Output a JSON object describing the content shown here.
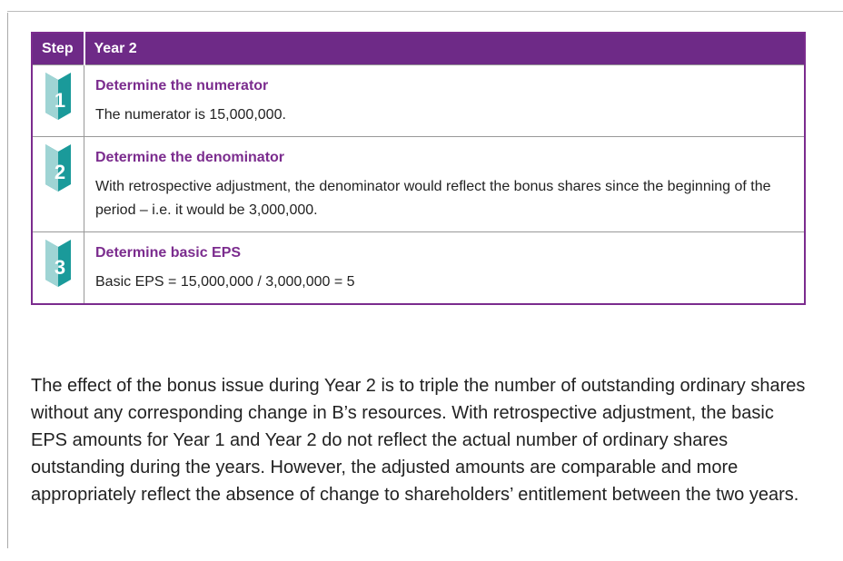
{
  "table": {
    "header": [
      "Step",
      "Year 2"
    ],
    "rows": [
      {
        "step": "1",
        "title": "Determine the numerator",
        "text": "The numerator is 15,000,000."
      },
      {
        "step": "2",
        "title": "Determine the denominator",
        "text": "With retrospective adjustment, the denominator would reflect the bonus shares since the beginning of the period – i.e. it would be 3,000,000."
      },
      {
        "step": "3",
        "title": "Determine basic EPS",
        "text": "Basic EPS = 15,000,000 / 3,000,000 = 5"
      }
    ]
  },
  "paragraph": "The effect of the bonus issue during Year 2 is to triple the number of outstanding ordinary shares without any corresponding change in B’s resources. With retrospective adjustment, the basic EPS amounts for Year 1 and Year 2 do not reflect the actual number of ordinary shares outstanding during the years. However, the adjusted amounts are comparable and more appropriately reflect the absence of change to shareholders’ entitlement between the two years."
}
